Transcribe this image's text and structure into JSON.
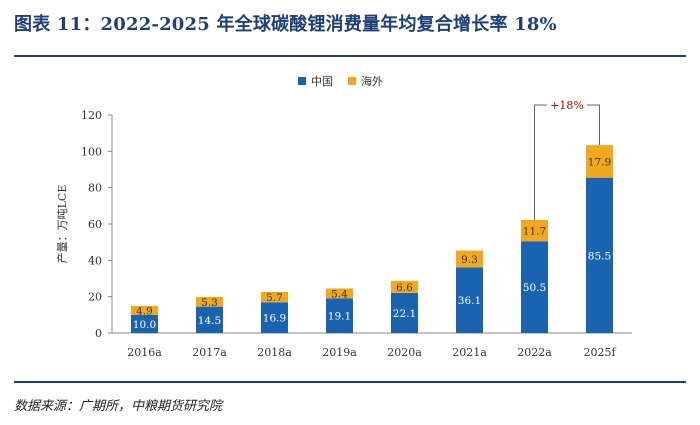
{
  "page": {
    "title": "图表 11：2022-2025 年全球碳酸锂消费量年均复合增长率 18%",
    "source": "数据来源：广期所，中粮期货研究院"
  },
  "colors": {
    "china": "#1a63b0",
    "overseas": "#f2a81d",
    "title": "#1f3f7a",
    "annotation": "#c00000"
  },
  "chart_data": {
    "type": "bar",
    "stacked": true,
    "categories": [
      "2016a",
      "2017a",
      "2018a",
      "2019a",
      "2020a",
      "2021a",
      "2022a",
      "2025f"
    ],
    "series": [
      {
        "name": "中国",
        "values": [
          10.0,
          14.5,
          16.9,
          19.1,
          22.1,
          36.1,
          50.5,
          85.5
        ]
      },
      {
        "name": "海外",
        "values": [
          4.9,
          5.3,
          5.7,
          5.4,
          6.6,
          9.3,
          11.7,
          17.9
        ]
      }
    ],
    "value_labels": [
      [
        "10.0",
        "14.5",
        "16.9",
        "19.1",
        "22.1",
        "36.1",
        "50.5",
        "85.5"
      ],
      [
        "4.9",
        "5.3",
        "5.7",
        "5.4",
        "6.6",
        "9.3",
        "11.7",
        "17.9"
      ]
    ],
    "ylabel": "产量：万吨LCE",
    "ylim": [
      0,
      120
    ],
    "yticks": [
      0,
      20,
      40,
      60,
      80,
      100,
      120
    ],
    "legend_position": "top-center",
    "grid": false,
    "annotation": {
      "text": "+18%",
      "from": "2022a",
      "to": "2025f"
    }
  }
}
